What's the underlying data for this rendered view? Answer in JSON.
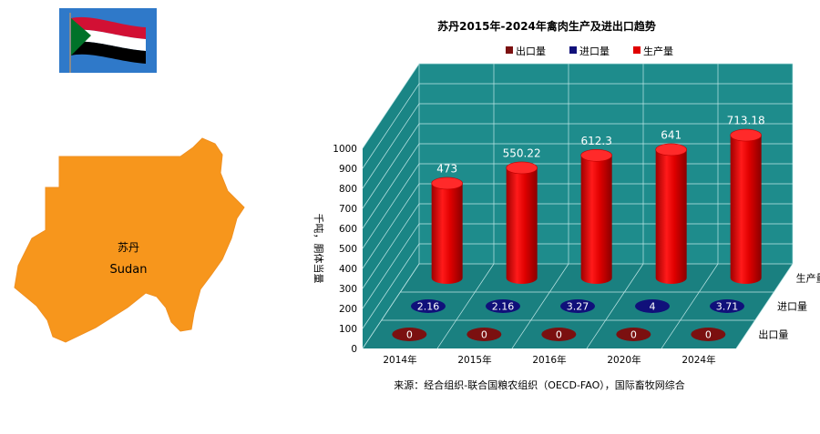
{
  "map": {
    "label_cn": "苏丹",
    "label_en": "Sudan",
    "fill": "#F7961C",
    "flag_colors": {
      "red": "#D21034",
      "white": "#FFFFFF",
      "black": "#000000",
      "green": "#007229"
    }
  },
  "chart_data": {
    "type": "bar",
    "style": "3d-cylinder",
    "title": "苏丹2015年-2024年禽肉生产及进出口趋势",
    "ylabel": "千吨，胴体当量",
    "ylim": [
      0,
      1000
    ],
    "yticks": [
      0,
      100,
      200,
      300,
      400,
      500,
      600,
      700,
      800,
      900,
      1000
    ],
    "grid": true,
    "legend_position": "top",
    "categories": [
      "2014年",
      "2015年",
      "2016年",
      "2020年",
      "2024年"
    ],
    "series": [
      {
        "name": "出口量",
        "depth_label": "出口量",
        "color": "#7B1010",
        "values": [
          0,
          0,
          0,
          0,
          0
        ],
        "labels": [
          "0",
          "0",
          "0",
          "0",
          "0"
        ]
      },
      {
        "name": "进口量",
        "depth_label": "进口量",
        "color": "#10107A",
        "values": [
          2.16,
          2.16,
          3.27,
          4,
          3.71
        ],
        "labels": [
          "2.16",
          "2.16",
          "3.27",
          "4",
          "3.71"
        ]
      },
      {
        "name": "生产量",
        "depth_label": "生产量",
        "color": "#E00000",
        "values": [
          473,
          550.22,
          612.3,
          641,
          713.18
        ],
        "labels": [
          "473",
          "550.22",
          "612.3",
          "641",
          "713.18"
        ]
      }
    ],
    "colors": {
      "wall": "#1E8C8C",
      "floor": "#1A8080",
      "grid": "#BFE6E6"
    },
    "source": "来源：经合组织-联合国粮农组织（OECD-FAO），国际畜牧网综合"
  }
}
